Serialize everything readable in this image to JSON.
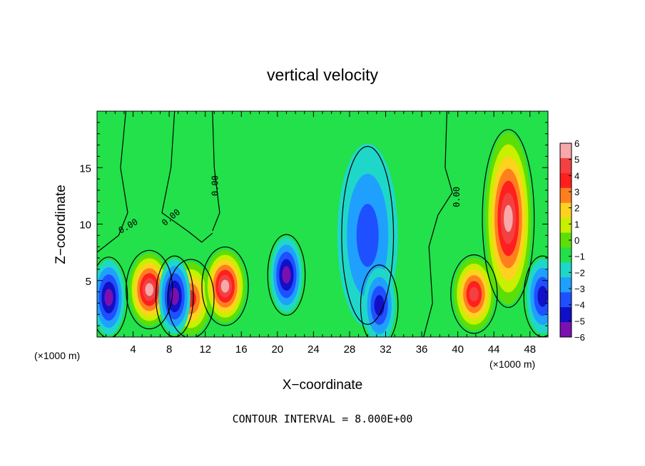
{
  "chart_data": {
    "type": "heatmap",
    "title": "vertical velocity",
    "xlabel": "X−coordinate",
    "ylabel": "Z−coordinate",
    "x_unit_left": "(×1000 m)",
    "x_unit_right": "(×1000 m)",
    "footer": "CONTOUR INTERVAL = 8.000E+00",
    "xlim": [
      0,
      50
    ],
    "ylim": [
      0,
      20
    ],
    "x_ticks": [
      4,
      8,
      12,
      16,
      20,
      24,
      28,
      32,
      36,
      40,
      44,
      48
    ],
    "y_ticks": [
      5,
      10,
      15
    ],
    "contour_label": "0.00",
    "colorbar": {
      "ticks": [
        6,
        5,
        4,
        3,
        2,
        1,
        0,
        -1,
        -2,
        -3,
        -4,
        -5,
        -6
      ],
      "tick_labels": [
        "6",
        "5",
        "4",
        "3",
        "2",
        "1",
        "0",
        "−1",
        "−2",
        "−3",
        "−4",
        "−5",
        "−6"
      ],
      "colors": [
        "#f7a8a8",
        "#f34141",
        "#ff1f1f",
        "#ff7f1f",
        "#ffd21f",
        "#c8f000",
        "#5cde08",
        "#22e14a",
        "#1fd7c8",
        "#1fa0ff",
        "#1f50ff",
        "#1010c8",
        "#7a10b0"
      ]
    },
    "features": [
      {
        "kind": "updraft",
        "x": 5.8,
        "z": 4.2,
        "peak": 14
      },
      {
        "kind": "updraft",
        "x": 10.4,
        "z": 3.4,
        "peak": 10
      },
      {
        "kind": "updraft",
        "x": 14.2,
        "z": 4.5,
        "peak": 13
      },
      {
        "kind": "updraft",
        "x": 41.8,
        "z": 3.8,
        "peak": 11
      },
      {
        "kind": "updraft",
        "x": 45.6,
        "z": 10.5,
        "peak": 14
      },
      {
        "kind": "downdraft",
        "x": 1.3,
        "z": 3.5,
        "peak": -10
      },
      {
        "kind": "downdraft",
        "x": 8.6,
        "z": 3.6,
        "peak": -9
      },
      {
        "kind": "downdraft",
        "x": 21.0,
        "z": 5.5,
        "peak": -9
      },
      {
        "kind": "downdraft",
        "x": 30.0,
        "z": 9.0,
        "peak": -6
      },
      {
        "kind": "downdraft",
        "x": 31.3,
        "z": 2.8,
        "peak": -8
      },
      {
        "kind": "downdraft",
        "x": 49.4,
        "z": 3.6,
        "peak": -8
      }
    ]
  }
}
